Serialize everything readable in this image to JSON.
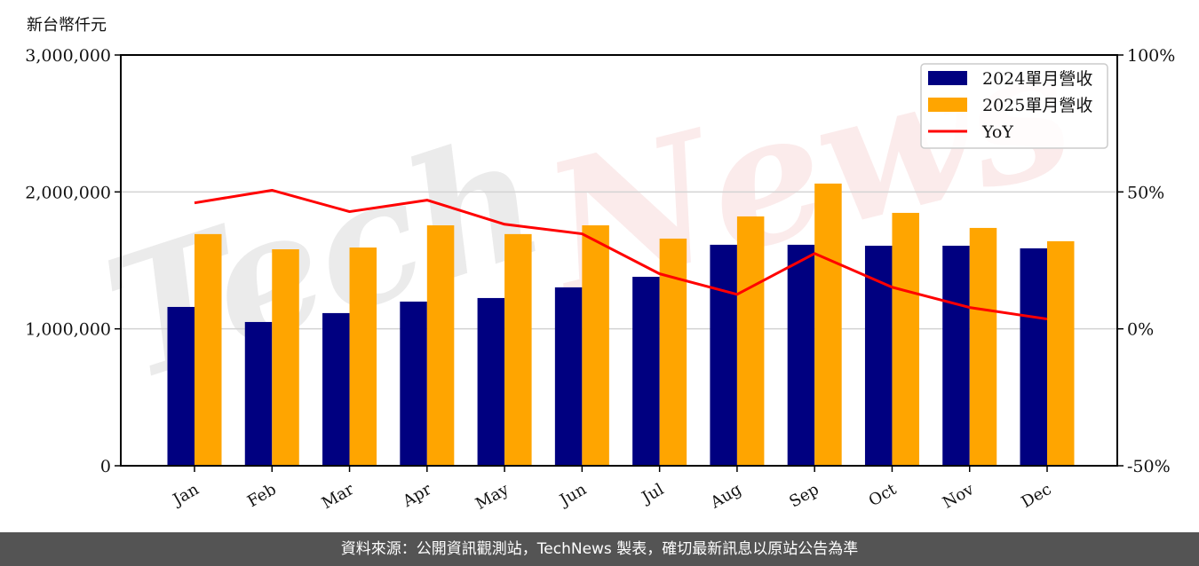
{
  "chart_data": {
    "type": "bar",
    "title": "",
    "ylabel": "新台幣仟元",
    "xlabel": "",
    "categories": [
      "Jan",
      "Feb",
      "Mar",
      "Apr",
      "May",
      "Jun",
      "Jul",
      "Aug",
      "Sep",
      "Oct",
      "Nov",
      "Dec"
    ],
    "series": [
      {
        "name": "2024單月營收",
        "type": "bar",
        "color": "#000080",
        "axis": "left",
        "values": [
          1160000,
          1050000,
          1115000,
          1199000,
          1225000,
          1303000,
          1380000,
          1614000,
          1614000,
          1607000,
          1607000,
          1588000
        ]
      },
      {
        "name": "2025單月營收",
        "type": "bar",
        "color": "#FFA500",
        "axis": "left",
        "values": [
          1692000,
          1581000,
          1594000,
          1756000,
          1692000,
          1756000,
          1659000,
          1821000,
          2061000,
          1847000,
          1737000,
          1640000
        ]
      },
      {
        "name": "YoY",
        "type": "line",
        "color": "#FF0000",
        "axis": "right",
        "unit": "%",
        "values": [
          46.0,
          50.6,
          42.8,
          47.0,
          38.2,
          34.7,
          20.1,
          12.6,
          27.5,
          15.2,
          7.8,
          3.6
        ]
      }
    ],
    "ylim": [
      0,
      3000000
    ],
    "y_ticks": [
      0,
      1000000,
      2000000,
      3000000
    ],
    "y_tick_labels": [
      "0",
      "1,000,000",
      "2,000,000",
      "3,000,000"
    ],
    "y2lim": [
      -50,
      100
    ],
    "y2_ticks": [
      -50,
      0,
      50,
      100
    ],
    "y2_tick_labels": [
      "-50%",
      "0%",
      "50%",
      "100%"
    ],
    "grid": "horizontal",
    "legend_position": "upper right",
    "xtick_rotation": 30
  },
  "header": {
    "unit_label": "新台幣仟元"
  },
  "legend": {
    "items": [
      {
        "label": "2024單月營收",
        "color": "#000080",
        "kind": "patch"
      },
      {
        "label": "2025單月營收",
        "color": "#FFA500",
        "kind": "patch"
      },
      {
        "label": "YoY",
        "color": "#FF0000",
        "kind": "line"
      }
    ]
  },
  "watermark": {
    "text_a": "Tech",
    "text_b": "News"
  },
  "footer": {
    "text": "資料來源：公開資訊觀測站，TechNews 製表，確切最新訊息以原站公告為準"
  }
}
